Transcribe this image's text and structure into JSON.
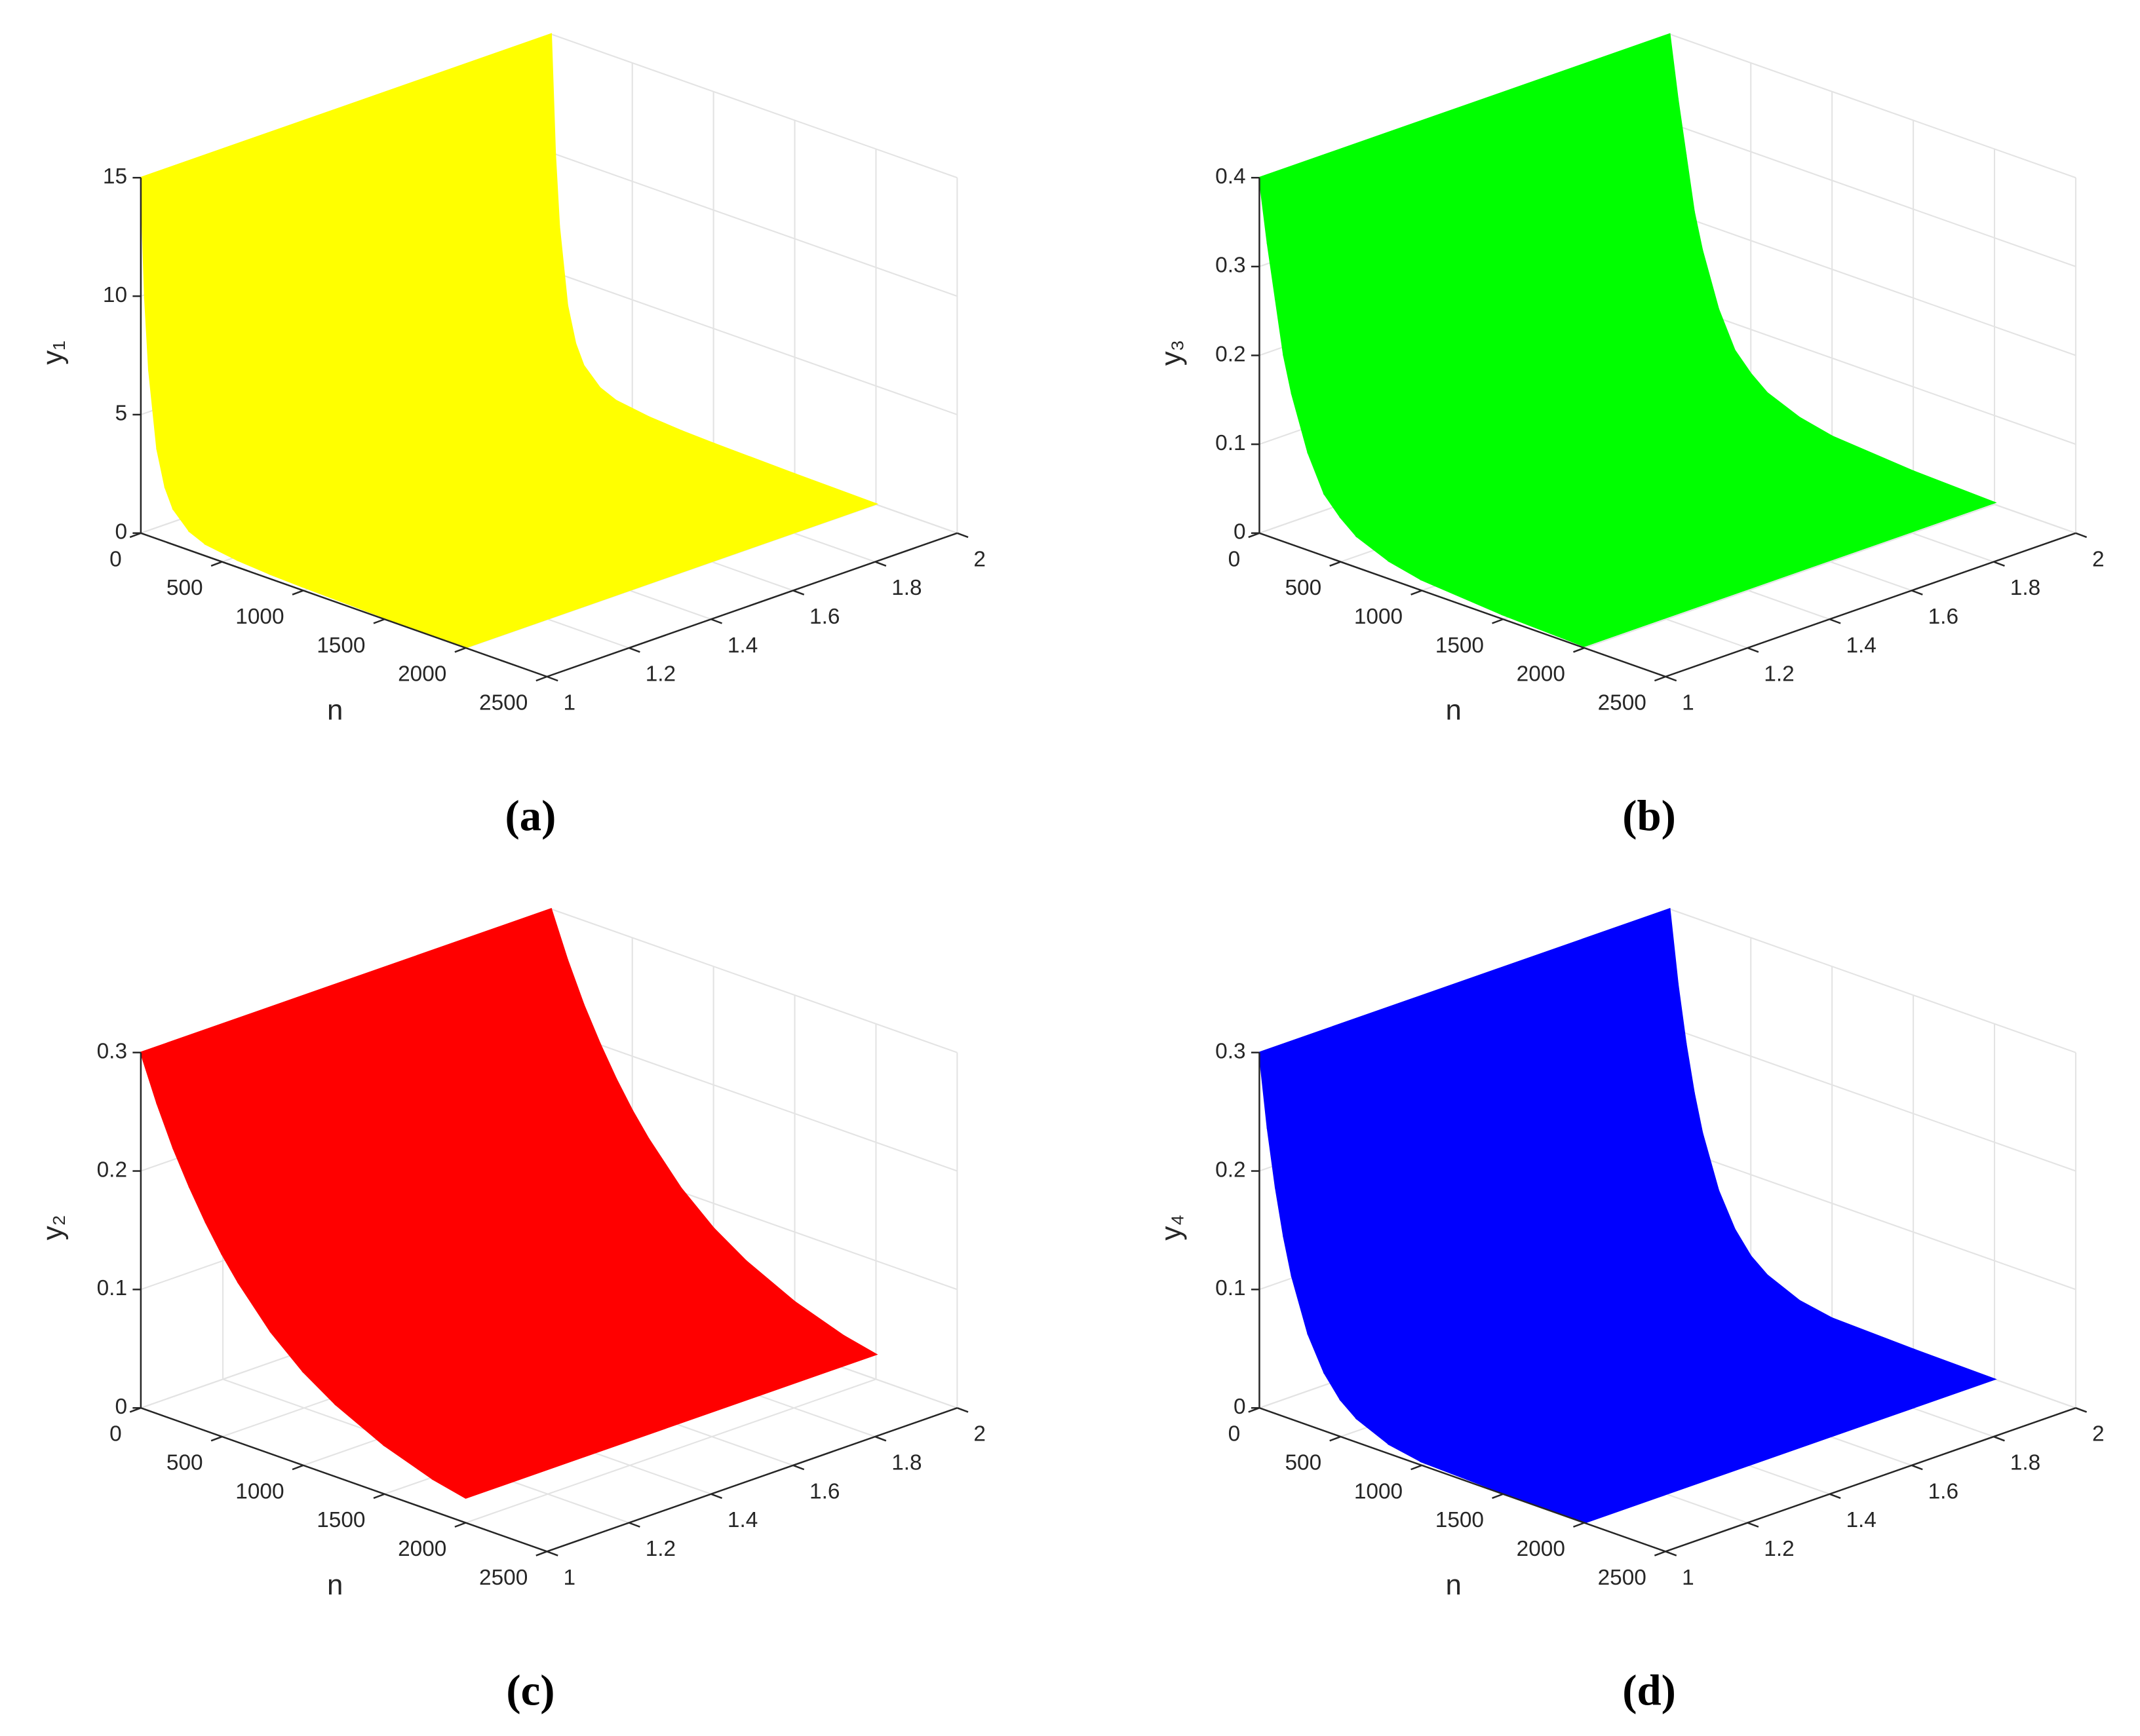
{
  "chart_data": [
    {
      "type": "surface",
      "caption": "(a)",
      "xlabel": "n",
      "zlabel": "y₁",
      "color": "#ffff00",
      "x": [
        0,
        25,
        50,
        100,
        150,
        200,
        300,
        400,
        600,
        800,
        1000,
        1500,
        2000
      ],
      "values": [
        15,
        10,
        7,
        3.8,
        2.3,
        1.5,
        0.8,
        0.5,
        0.3,
        0.2,
        0.15,
        0.07,
        0.02
      ],
      "xlim": [
        0,
        2500
      ],
      "xticks": [
        0,
        500,
        1000,
        1500,
        2000,
        2500
      ],
      "ylim": [
        1,
        2
      ],
      "yticks": [
        1,
        1.2,
        1.4,
        1.6,
        1.8,
        2
      ],
      "zlim": [
        0,
        15
      ],
      "zticks": [
        0,
        5,
        10,
        15
      ],
      "grid": true
    },
    {
      "type": "surface",
      "caption": "(b)",
      "xlabel": "n",
      "zlabel": "y₃",
      "color": "#00ff00",
      "x": [
        0,
        50,
        100,
        150,
        200,
        300,
        400,
        500,
        600,
        800,
        1000,
        1500,
        2000
      ],
      "values": [
        0.4,
        0.33,
        0.27,
        0.21,
        0.17,
        0.11,
        0.07,
        0.05,
        0.035,
        0.02,
        0.012,
        0.005,
        0.002
      ],
      "xlim": [
        0,
        2500
      ],
      "xticks": [
        0,
        500,
        1000,
        1500,
        2000,
        2500
      ],
      "ylim": [
        1,
        2
      ],
      "yticks": [
        1,
        1.2,
        1.4,
        1.6,
        1.8,
        2
      ],
      "zlim": [
        0,
        0.4
      ],
      "zticks": [
        0,
        0.1,
        0.2,
        0.3,
        0.4
      ],
      "grid": true
    },
    {
      "type": "surface",
      "caption": "(c)",
      "xlabel": "n",
      "zlabel": "y₂",
      "color": "#ff0000",
      "x": [
        0,
        100,
        200,
        300,
        400,
        500,
        600,
        800,
        1000,
        1200,
        1500,
        1800,
        2000
      ],
      "values": [
        0.3,
        0.262,
        0.229,
        0.201,
        0.176,
        0.154,
        0.135,
        0.103,
        0.079,
        0.061,
        0.041,
        0.027,
        0.021
      ],
      "xlim": [
        0,
        2500
      ],
      "xticks": [
        0,
        500,
        1000,
        1500,
        2000,
        2500
      ],
      "ylim": [
        1,
        2
      ],
      "yticks": [
        1,
        1.2,
        1.4,
        1.6,
        1.8,
        2
      ],
      "zlim": [
        0,
        0.3
      ],
      "zticks": [
        0,
        0.1,
        0.2,
        0.3
      ],
      "grid": true
    },
    {
      "type": "surface",
      "caption": "(d)",
      "xlabel": "n",
      "zlabel": "y₄",
      "color": "#0000ff",
      "x": [
        0,
        50,
        100,
        150,
        200,
        300,
        400,
        500,
        600,
        800,
        1000,
        1500,
        2000
      ],
      "values": [
        0.3,
        0.239,
        0.191,
        0.152,
        0.121,
        0.077,
        0.049,
        0.031,
        0.02,
        0.008,
        0.003,
        0.001,
        0
      ],
      "xlim": [
        0,
        2500
      ],
      "xticks": [
        0,
        500,
        1000,
        1500,
        2000,
        2500
      ],
      "ylim": [
        1,
        2
      ],
      "yticks": [
        1,
        1.2,
        1.4,
        1.6,
        1.8,
        2
      ],
      "zlim": [
        0,
        0.3
      ],
      "zticks": [
        0,
        0.1,
        0.2,
        0.3
      ],
      "grid": true
    }
  ]
}
